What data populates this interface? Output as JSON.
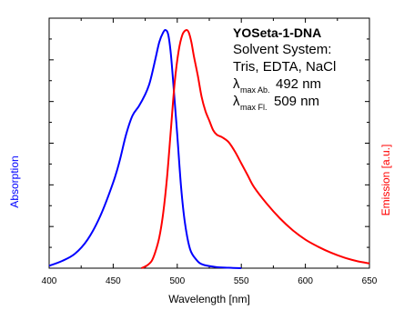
{
  "chart_data": {
    "type": "line",
    "xlabel": "Wavelength [nm]",
    "ylabel_left": "Absorption",
    "ylabel_right": "Emission [a.u.]",
    "xlim": [
      400,
      650
    ],
    "ylim": [
      0,
      1.05
    ],
    "xticks": [
      "400",
      "450",
      "500",
      "550",
      "600",
      "650"
    ],
    "xtick_values": [
      400,
      450,
      500,
      550,
      600,
      650
    ],
    "grid": false,
    "series": [
      {
        "name": "Absorption",
        "color": "#0000ff",
        "x": [
          400,
          410,
          420,
          430,
          440,
          450,
          455,
          460,
          465,
          470,
          475,
          478,
          480,
          483,
          486,
          489,
          491,
          493,
          495,
          497,
          500,
          503,
          506,
          510,
          515,
          520,
          530,
          540,
          550
        ],
        "y": [
          0.01,
          0.03,
          0.06,
          0.12,
          0.22,
          0.36,
          0.45,
          0.56,
          0.64,
          0.68,
          0.73,
          0.77,
          0.81,
          0.88,
          0.95,
          0.99,
          1.0,
          0.98,
          0.9,
          0.77,
          0.56,
          0.34,
          0.19,
          0.08,
          0.035,
          0.015,
          0.005,
          0.002,
          0.0
        ]
      },
      {
        "name": "Emission",
        "color": "#ff0000",
        "x": [
          472,
          476,
          480,
          483,
          486,
          489,
          492,
          495,
          498,
          501,
          504,
          507,
          509,
          511,
          513,
          516,
          519,
          522,
          525,
          528,
          531,
          535,
          540,
          545,
          550,
          555,
          560,
          570,
          580,
          590,
          600,
          610,
          620,
          630,
          640,
          650
        ],
        "y": [
          0.0,
          0.01,
          0.03,
          0.07,
          0.13,
          0.23,
          0.38,
          0.58,
          0.78,
          0.91,
          0.98,
          1.0,
          0.99,
          0.95,
          0.89,
          0.81,
          0.72,
          0.66,
          0.62,
          0.58,
          0.56,
          0.55,
          0.53,
          0.49,
          0.44,
          0.39,
          0.34,
          0.27,
          0.21,
          0.16,
          0.12,
          0.09,
          0.065,
          0.045,
          0.03,
          0.02
        ]
      }
    ],
    "annotation": {
      "title": "YOSeta-1-DNA",
      "line1": "Solvent System:",
      "line2": "Tris, EDTA, NaCl",
      "lambda": "λ",
      "abs_sub": "max Ab.",
      "abs_value": "492 nm",
      "fl_sub": "max Fl.",
      "fl_value": "509 nm"
    }
  }
}
